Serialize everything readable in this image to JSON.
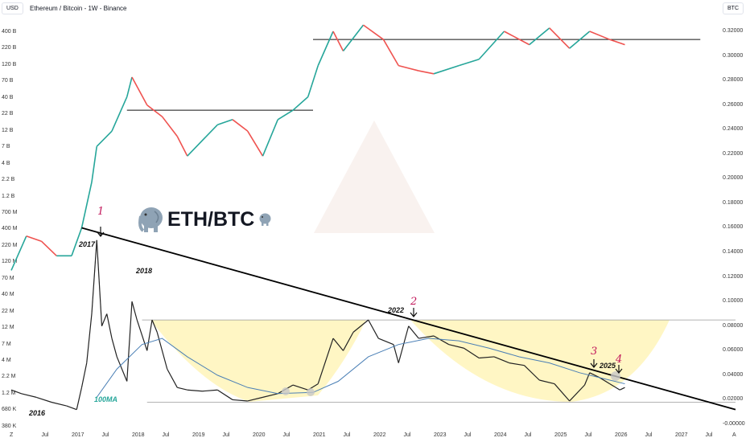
{
  "header": {
    "currency_left": "USD",
    "currency_right": "BTC",
    "title": "Ethereum / Bitcoin - 1W - Binance"
  },
  "left_axis": [
    "400 B",
    "220 B",
    "120 B",
    "70 B",
    "40 B",
    "22 B",
    "12 B",
    "7 B",
    "4 B",
    "2.2 B",
    "1.2 B",
    "700 M",
    "400 M",
    "220 M",
    "120 M",
    "70 M",
    "40 M",
    "22 M",
    "12 M",
    "7 M",
    "4 M",
    "2.2 M",
    "1.2 M",
    "680 K",
    "380 K"
  ],
  "right_axis": [
    "0.32000",
    "0.30000",
    "0.28000",
    "0.26000",
    "0.24000",
    "0.22000",
    "0.20000",
    "0.18000",
    "0.16000",
    "0.14000",
    "0.12000",
    "0.10000",
    "0.08000",
    "0.06000",
    "0.04000",
    "0.02000",
    "-0.00000"
  ],
  "x_axis": [
    "Z",
    "Jul",
    "2017",
    "Jul",
    "2018",
    "Jul",
    "2019",
    "Jul",
    "2020",
    "Jul",
    "2021",
    "Jul",
    "2022",
    "Jul",
    "2023",
    "Jul",
    "2024",
    "Jul",
    "2025",
    "Jul",
    "2026",
    "Jul",
    "2027",
    "Jul",
    "A"
  ],
  "annotations": {
    "n1": "1",
    "n2": "2",
    "n3": "3",
    "n4": "4",
    "y2016": "2016",
    "y2017": "2017",
    "y2018": "2018",
    "y2022": "2022",
    "y2025": "2025",
    "ma": "100MA",
    "label": "ETH/BTC"
  },
  "colors": {
    "up": "#26a69a",
    "down": "#ef5350",
    "price": "#222222",
    "ma": "#4a7fb5",
    "zone": "#fff3b0",
    "accent": "#c2185b"
  },
  "chart_data": {
    "type": "line",
    "title": "Ethereum / Bitcoin - 1W - Binance",
    "yaxis_right": {
      "unit": "BTC",
      "range": [
        0,
        0.32
      ]
    },
    "yaxis_left": {
      "unit": "USD",
      "scale": "log",
      "range": [
        380000,
        400000000000
      ]
    },
    "series": [
      {
        "key": "ethbtc",
        "axis": "right",
        "points": [
          [
            "2016-01",
            0.028
          ],
          [
            "2016-03",
            0.025
          ],
          [
            "2016-06",
            0.022
          ],
          [
            "2016-09",
            0.018
          ],
          [
            "2016-12",
            0.015
          ],
          [
            "2017-02",
            0.012
          ],
          [
            "2017-03",
            0.03
          ],
          [
            "2017-04",
            0.05
          ],
          [
            "2017-05",
            0.09
          ],
          [
            "2017-06",
            0.15
          ],
          [
            "2017-07",
            0.08
          ],
          [
            "2017-08",
            0.09
          ],
          [
            "2017-09",
            0.07
          ],
          [
            "2017-10",
            0.055
          ],
          [
            "2017-12",
            0.035
          ],
          [
            "2018-01",
            0.1
          ],
          [
            "2018-02",
            0.085
          ],
          [
            "2018-04",
            0.06
          ],
          [
            "2018-05",
            0.085
          ],
          [
            "2018-06",
            0.075
          ],
          [
            "2018-08",
            0.045
          ],
          [
            "2018-10",
            0.03
          ],
          [
            "2018-12",
            0.028
          ],
          [
            "2019-03",
            0.027
          ],
          [
            "2019-06",
            0.028
          ],
          [
            "2019-09",
            0.02
          ],
          [
            "2019-12",
            0.019
          ],
          [
            "2020-03",
            0.022
          ],
          [
            "2020-06",
            0.025
          ],
          [
            "2020-09",
            0.032
          ],
          [
            "2020-12",
            0.028
          ],
          [
            "2021-02",
            0.033
          ],
          [
            "2021-05",
            0.07
          ],
          [
            "2021-07",
            0.06
          ],
          [
            "2021-09",
            0.075
          ],
          [
            "2021-12",
            0.085
          ],
          [
            "2022-02",
            0.07
          ],
          [
            "2022-05",
            0.065
          ],
          [
            "2022-06",
            0.05
          ],
          [
            "2022-08",
            0.08
          ],
          [
            "2022-10",
            0.07
          ],
          [
            "2023-01",
            0.072
          ],
          [
            "2023-04",
            0.065
          ],
          [
            "2023-07",
            0.062
          ],
          [
            "2023-10",
            0.054
          ],
          [
            "2024-01",
            0.055
          ],
          [
            "2024-04",
            0.05
          ],
          [
            "2024-07",
            0.048
          ],
          [
            "2024-10",
            0.036
          ],
          [
            "2025-01",
            0.033
          ],
          [
            "2025-04",
            0.019
          ],
          [
            "2025-07",
            0.032
          ],
          [
            "2025-08",
            0.042
          ],
          [
            "2025-10",
            0.038
          ],
          [
            "2025-12",
            0.033
          ],
          [
            "2026-02",
            0.028
          ],
          [
            "2026-03",
            0.03
          ]
        ]
      },
      {
        "key": "cap",
        "axis": "left",
        "points": [
          [
            "2016-01",
            90000000
          ],
          [
            "2016-04",
            300000000
          ],
          [
            "2016-07",
            250000000
          ],
          [
            "2016-10",
            150000000
          ],
          [
            "2017-01",
            150000000
          ],
          [
            "2017-03",
            400000000
          ],
          [
            "2017-05",
            2000000000
          ],
          [
            "2017-06",
            7000000000
          ],
          [
            "2017-09",
            12000000000
          ],
          [
            "2017-12",
            40000000000
          ],
          [
            "2018-01",
            80000000000
          ],
          [
            "2018-04",
            30000000000
          ],
          [
            "2018-07",
            20000000000
          ],
          [
            "2018-10",
            10000000000
          ],
          [
            "2018-12",
            5000000000
          ],
          [
            "2019-06",
            15000000000
          ],
          [
            "2019-09",
            18000000000
          ],
          [
            "2019-12",
            12000000000
          ],
          [
            "2020-03",
            5000000000
          ],
          [
            "2020-06",
            18000000000
          ],
          [
            "2020-09",
            25000000000
          ],
          [
            "2020-12",
            40000000000
          ],
          [
            "2021-02",
            120000000000
          ],
          [
            "2021-05",
            400000000000
          ],
          [
            "2021-07",
            200000000000
          ],
          [
            "2021-11",
            500000000000
          ],
          [
            "2022-03",
            300000000000
          ],
          [
            "2022-06",
            120000000000
          ],
          [
            "2022-10",
            100000000000
          ],
          [
            "2023-01",
            90000000000
          ],
          [
            "2023-06",
            120000000000
          ],
          [
            "2023-10",
            150000000000
          ],
          [
            "2024-03",
            400000000000
          ],
          [
            "2024-08",
            250000000000
          ],
          [
            "2024-12",
            450000000000
          ],
          [
            "2025-04",
            220000000000
          ],
          [
            "2025-08",
            400000000000
          ],
          [
            "2025-12",
            300000000000
          ],
          [
            "2026-03",
            250000000000
          ]
        ]
      },
      {
        "key": "ma100",
        "axis": "right",
        "name": "100MA",
        "points": [
          [
            "2017-06",
            0.022
          ],
          [
            "2017-10",
            0.045
          ],
          [
            "2018-03",
            0.065
          ],
          [
            "2018-07",
            0.07
          ],
          [
            "2018-12",
            0.055
          ],
          [
            "2019-06",
            0.04
          ],
          [
            "2019-12",
            0.03
          ],
          [
            "2020-06",
            0.025
          ],
          [
            "2021-01",
            0.026
          ],
          [
            "2021-06",
            0.035
          ],
          [
            "2021-12",
            0.055
          ],
          [
            "2022-06",
            0.065
          ],
          [
            "2022-12",
            0.07
          ],
          [
            "2023-06",
            0.068
          ],
          [
            "2023-12",
            0.062
          ],
          [
            "2024-06",
            0.055
          ],
          [
            "2024-12",
            0.05
          ],
          [
            "2025-06",
            0.042
          ],
          [
            "2025-12",
            0.036
          ],
          [
            "2026-03",
            0.033
          ]
        ]
      }
    ],
    "trendline": [
      [
        "2017-03",
        0.16
      ],
      [
        "2028-01",
        0.012
      ]
    ],
    "hlines": [
      {
        "axis": "right",
        "value": 0.085,
        "from": "2018-03",
        "to": "2028-01"
      },
      {
        "axis": "right",
        "value": 0.018,
        "from": "2018-04",
        "to": "2028-01"
      },
      {
        "axis": "left",
        "value": 25000000000,
        "from": "2017-12",
        "to": "2021-01"
      },
      {
        "axis": "left",
        "value": 300000000000,
        "from": "2021-01",
        "to": "2027-06"
      }
    ]
  }
}
